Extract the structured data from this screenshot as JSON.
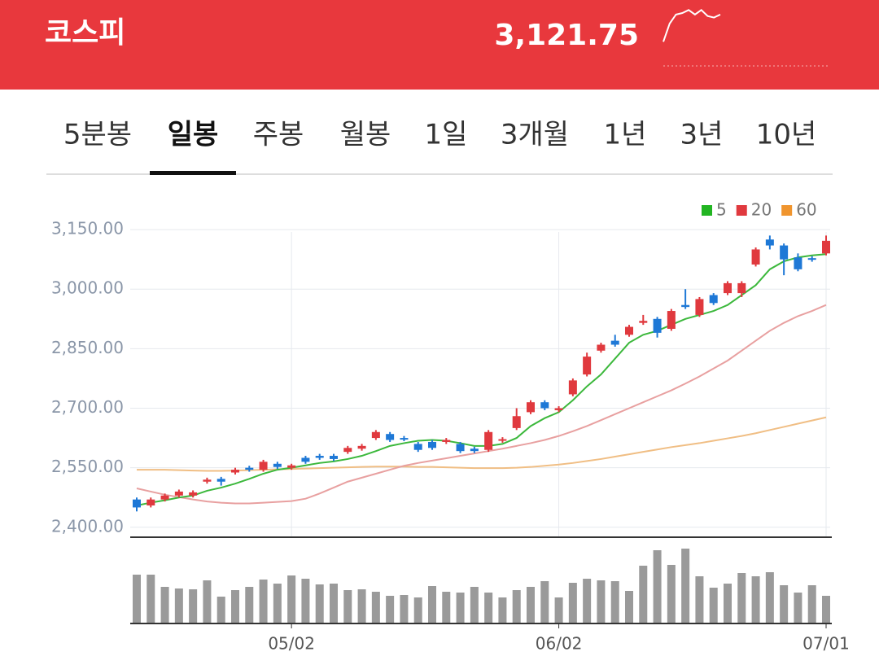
{
  "header": {
    "title": "코스피",
    "value": "3,121.75",
    "sparkline": [
      3100,
      3112,
      3118,
      3119,
      3121,
      3118,
      3121,
      3117,
      3116,
      3118
    ],
    "sparkline_lim": [
      3098,
      3126
    ]
  },
  "tabs": {
    "items": [
      "5분봉",
      "일봉",
      "주봉",
      "월봉",
      "1일",
      "3개월",
      "1년",
      "3년",
      "10년"
    ],
    "selected": 1
  },
  "chart_data": {
    "type": "candlestick",
    "categories": [
      null,
      null,
      null,
      null,
      null,
      null,
      null,
      null,
      null,
      null,
      null,
      "05/02",
      null,
      null,
      null,
      null,
      null,
      null,
      null,
      null,
      null,
      null,
      null,
      null,
      null,
      null,
      null,
      null,
      null,
      null,
      "06/02",
      null,
      null,
      null,
      null,
      null,
      null,
      null,
      null,
      null,
      null,
      null,
      null,
      null,
      null,
      null,
      null,
      null,
      null,
      "07/01"
    ],
    "open": [
      2470,
      2455,
      2470,
      2480,
      2480,
      2515,
      2522,
      2538,
      2550,
      2545,
      2560,
      2550,
      2575,
      2580,
      2580,
      2590,
      2598,
      2625,
      2635,
      2625,
      2610,
      2615,
      2615,
      2610,
      2598,
      2595,
      2618,
      2650,
      2690,
      2715,
      2695,
      2735,
      2785,
      2845,
      2870,
      2885,
      2915,
      2925,
      2900,
      2960,
      2935,
      2985,
      2990,
      2990,
      3062,
      3125,
      3110,
      3080,
      3078,
      3090
    ],
    "high": [
      2475,
      2475,
      2485,
      2495,
      2493,
      2525,
      2527,
      2550,
      2555,
      2570,
      2565,
      2560,
      2580,
      2585,
      2585,
      2605,
      2610,
      2645,
      2640,
      2630,
      2615,
      2620,
      2625,
      2615,
      2603,
      2645,
      2627,
      2700,
      2720,
      2720,
      2705,
      2775,
      2840,
      2865,
      2885,
      2910,
      2935,
      2930,
      2950,
      3000,
      2980,
      2990,
      3020,
      3020,
      3105,
      3135,
      3115,
      3090,
      3083,
      3135
    ],
    "low": [
      2440,
      2450,
      2465,
      2475,
      2475,
      2510,
      2505,
      2533,
      2540,
      2540,
      2547,
      2545,
      2560,
      2570,
      2567,
      2585,
      2593,
      2620,
      2615,
      2617,
      2590,
      2595,
      2610,
      2587,
      2587,
      2590,
      2613,
      2645,
      2685,
      2695,
      2690,
      2730,
      2780,
      2840,
      2855,
      2880,
      2910,
      2878,
      2895,
      2950,
      2930,
      2960,
      2985,
      2980,
      3057,
      3100,
      3035,
      3045,
      3069,
      3085
    ],
    "close": [
      2450,
      2470,
      2480,
      2490,
      2488,
      2520,
      2515,
      2545,
      2545,
      2565,
      2552,
      2556,
      2565,
      2575,
      2572,
      2600,
      2605,
      2640,
      2620,
      2622,
      2595,
      2600,
      2620,
      2592,
      2592,
      2640,
      2622,
      2680,
      2715,
      2700,
      2700,
      2770,
      2830,
      2860,
      2860,
      2905,
      2920,
      2890,
      2945,
      2955,
      2975,
      2965,
      3015,
      3015,
      3100,
      3110,
      3075,
      3050,
      3074,
      3121.75
    ],
    "up_color": "#e0393e",
    "down_color": "#1e78d6",
    "series": [
      {
        "name": "5",
        "color": "#3cb83c",
        "values": [
          2455,
          2462,
          2468,
          2475,
          2480,
          2492,
          2500,
          2510,
          2522,
          2535,
          2545,
          2550,
          2556,
          2562,
          2566,
          2572,
          2580,
          2592,
          2605,
          2612,
          2618,
          2620,
          2618,
          2612,
          2605,
          2605,
          2610,
          2625,
          2655,
          2675,
          2690,
          2720,
          2755,
          2785,
          2825,
          2865,
          2885,
          2895,
          2910,
          2925,
          2935,
          2945,
          2960,
          2985,
          3010,
          3050,
          3070,
          3080,
          3085,
          3088
        ]
      },
      {
        "name": "20",
        "color": "#e8a0a0",
        "values": [
          2498,
          2490,
          2482,
          2476,
          2470,
          2465,
          2462,
          2460,
          2460,
          2462,
          2464,
          2466,
          2472,
          2485,
          2500,
          2515,
          2525,
          2535,
          2545,
          2555,
          2562,
          2568,
          2574,
          2580,
          2586,
          2592,
          2598,
          2605,
          2612,
          2620,
          2630,
          2642,
          2655,
          2670,
          2685,
          2700,
          2715,
          2730,
          2745,
          2762,
          2780,
          2800,
          2820,
          2845,
          2870,
          2895,
          2915,
          2932,
          2945,
          2960
        ]
      },
      {
        "name": "60",
        "color": "#f0be84",
        "values": [
          2545,
          2545,
          2545,
          2544,
          2543,
          2542,
          2542,
          2543,
          2544,
          2545,
          2546,
          2547,
          2548,
          2549,
          2550,
          2551,
          2552,
          2553,
          2553,
          2553,
          2552,
          2552,
          2551,
          2550,
          2549,
          2549,
          2549,
          2550,
          2552,
          2555,
          2558,
          2562,
          2567,
          2572,
          2578,
          2584,
          2590,
          2596,
          2602,
          2607,
          2612,
          2618,
          2624,
          2630,
          2637,
          2645,
          2653,
          2661,
          2669,
          2677
        ]
      }
    ],
    "legend_colors": [
      "#22b522",
      "#e0393e",
      "#f0952e"
    ],
    "ylim": [
      2375,
      3185
    ],
    "yticks": [
      {
        "value": 2400,
        "label": "2,400.00"
      },
      {
        "value": 2550,
        "label": "2,550.00"
      },
      {
        "value": 2700,
        "label": "2,700.00"
      },
      {
        "value": 2850,
        "label": "2,850.00"
      },
      {
        "value": 3000,
        "label": "3,000.00"
      },
      {
        "value": 3150,
        "label": "3,150.00"
      }
    ],
    "grid": true,
    "volume": {
      "color": "#9a9a9a",
      "ylim": [
        0,
        100
      ],
      "values": [
        60,
        60,
        45,
        43,
        42,
        53,
        33,
        41,
        45,
        54,
        49,
        59,
        55,
        48,
        49,
        41,
        42,
        39,
        34,
        35,
        32,
        46,
        39,
        38,
        45,
        38,
        32,
        41,
        45,
        52,
        32,
        50,
        55,
        53,
        52,
        40,
        71,
        90,
        72,
        92,
        58,
        44,
        49,
        62,
        58,
        63,
        47,
        38,
        47,
        34
      ]
    }
  }
}
